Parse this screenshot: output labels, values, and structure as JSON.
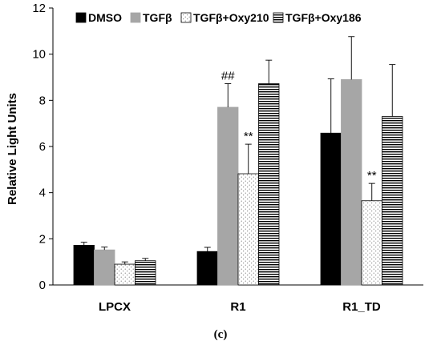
{
  "caption": "(c)",
  "chart_data": {
    "type": "bar",
    "ylabel": "Relative Light Units",
    "xlabel": "",
    "ylim": [
      0,
      12
    ],
    "yticks": [
      0,
      2,
      4,
      6,
      8,
      10,
      12
    ],
    "categories": [
      "LPCX",
      "R1",
      "R1_TD"
    ],
    "legend": {
      "placement": "top",
      "ncol": 4
    },
    "grid": false,
    "series": [
      {
        "name": "DMSO",
        "pattern": "solid-black",
        "color": "#000000",
        "values": [
          1.72,
          1.45,
          6.58
        ],
        "errors": [
          0.13,
          0.18,
          2.35
        ]
      },
      {
        "name": "TGFβ",
        "pattern": "solid-gray",
        "color": "#a6a6a6",
        "values": [
          1.52,
          7.7,
          8.9
        ],
        "errors": [
          0.12,
          1.02,
          1.86
        ]
      },
      {
        "name": "TGFβ+Oxy210",
        "pattern": "dotted-white",
        "color": "#ffffff",
        "values": [
          0.9,
          4.82,
          3.65
        ],
        "errors": [
          0.1,
          1.28,
          0.75
        ]
      },
      {
        "name": "TGFβ+Oxy186",
        "pattern": "horizontal-stripes",
        "color": "#000000",
        "values": [
          1.05,
          8.72,
          7.3
        ],
        "errors": [
          0.1,
          1.02,
          2.25
        ]
      }
    ],
    "annotations": [
      {
        "category": "R1",
        "series": "TGFβ",
        "text": "##"
      },
      {
        "category": "R1",
        "series": "TGFβ+Oxy210",
        "text": "**"
      },
      {
        "category": "R1_TD",
        "series": "TGFβ+Oxy210",
        "text": "**"
      }
    ]
  }
}
